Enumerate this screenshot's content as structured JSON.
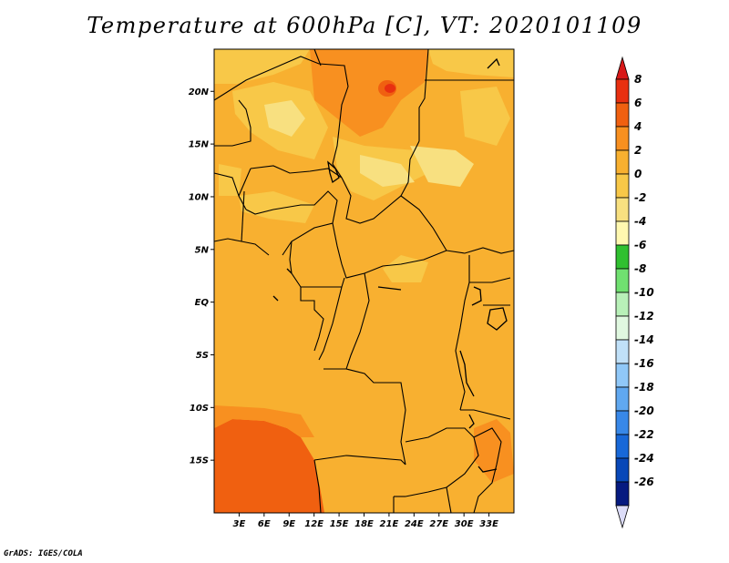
{
  "title": "Temperature at 600hPa [C], VT: 2020101109",
  "footer": "GrADS: IGES/COLA",
  "map": {
    "lon_range": [
      0,
      36
    ],
    "lat_range": [
      -20,
      24
    ],
    "lat_ticks": [
      {
        "value": 20,
        "label": "20N"
      },
      {
        "value": 15,
        "label": "15N"
      },
      {
        "value": 10,
        "label": "10N"
      },
      {
        "value": 5,
        "label": "5N"
      },
      {
        "value": 0,
        "label": "EQ"
      },
      {
        "value": -5,
        "label": "5S"
      },
      {
        "value": -10,
        "label": "10S"
      },
      {
        "value": -15,
        "label": "15S"
      }
    ],
    "lon_ticks": [
      {
        "value": 3,
        "label": "3E"
      },
      {
        "value": 6,
        "label": "6E"
      },
      {
        "value": 9,
        "label": "9E"
      },
      {
        "value": 12,
        "label": "12E"
      },
      {
        "value": 15,
        "label": "15E"
      },
      {
        "value": 18,
        "label": "18E"
      },
      {
        "value": 21,
        "label": "21E"
      },
      {
        "value": 24,
        "label": "24E"
      },
      {
        "value": 27,
        "label": "27E"
      },
      {
        "value": 30,
        "label": "30E"
      },
      {
        "value": 33,
        "label": "33E"
      }
    ]
  },
  "colorbar": {
    "segments": [
      {
        "label": "8",
        "color": "#e83010"
      },
      {
        "label": "6",
        "color": "#f06010"
      },
      {
        "label": "4",
        "color": "#f89020"
      },
      {
        "label": "2",
        "color": "#f8b030"
      },
      {
        "label": "0",
        "color": "#f8c848"
      },
      {
        "label": "-2",
        "color": "#f8e080"
      },
      {
        "label": "-4",
        "color": "#fff8b0"
      },
      {
        "label": "-6",
        "color": "#30c030"
      },
      {
        "label": "-8",
        "color": "#70e070"
      },
      {
        "label": "-10",
        "color": "#b8f0b8"
      },
      {
        "label": "-12",
        "color": "#e0f8e0"
      },
      {
        "label": "-14",
        "color": "#c0e0f8"
      },
      {
        "label": "-16",
        "color": "#90c8f8"
      },
      {
        "label": "-18",
        "color": "#60a8f0"
      },
      {
        "label": "-20",
        "color": "#3888e8"
      },
      {
        "label": "-22",
        "color": "#1868d8"
      },
      {
        "label": "-24",
        "color": "#0848b8"
      },
      {
        "label": "-26",
        "color": "#061a80"
      }
    ],
    "top_cap_color": "#d81818",
    "bottom_cap_color": "#dcdcf8"
  }
}
